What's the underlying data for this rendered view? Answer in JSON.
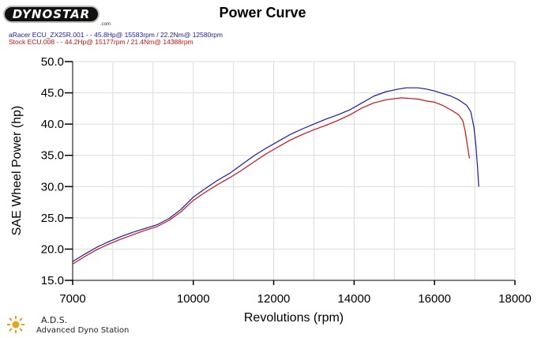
{
  "header": {
    "logo_text": "DYNOSTAR",
    "logo_sub": ".com",
    "title": "Power Curve"
  },
  "legend": [
    {
      "text": "aRacer ECU_ZX25R.001 - - 45.8Hp@ 15583rpm / 22.2Nm@ 12580rpm",
      "color": "#1a1aaa"
    },
    {
      "text": "Stock ECU.008 - - 44.2Hp@ 15177rpm / 21.4Nm@ 14388rpm",
      "color": "#cc1111"
    }
  ],
  "footer": {
    "name": "A.D.S.",
    "subtitle": "Advanced Dyno Station"
  },
  "chart_data": {
    "type": "line",
    "title": "Power Curve",
    "xlabel": "Revolutions (rpm)",
    "ylabel": "SAE Wheel Power (hp)",
    "xlim": [
      7000,
      18000
    ],
    "ylim": [
      15,
      50
    ],
    "xticks": [
      7000,
      10000,
      12000,
      14000,
      16000,
      18000
    ],
    "xtick_labels": [
      "7000",
      "10000",
      "12000",
      "14000",
      "16000",
      "18000"
    ],
    "yticks": [
      15,
      20,
      25,
      30,
      35,
      40,
      45,
      50
    ],
    "ytick_labels": [
      "15.0",
      "20.0",
      "25.0",
      "30.0",
      "35.0",
      "40.0",
      "45.0",
      "50.0"
    ],
    "grid": true,
    "series": [
      {
        "name": "aRacer ECU_ZX25R.001",
        "color": "#1a1aaa",
        "x": [
          7000,
          7300,
          7600,
          7900,
          8200,
          8500,
          8800,
          9100,
          9400,
          9700,
          10000,
          10300,
          10600,
          10900,
          11200,
          11500,
          11800,
          12100,
          12400,
          12700,
          13000,
          13300,
          13600,
          13900,
          14200,
          14500,
          14800,
          15100,
          15300,
          15583,
          15800,
          16000,
          16200,
          16400,
          16600,
          16800,
          16900,
          16980,
          17030,
          17070,
          17100
        ],
        "y": [
          18.0,
          19.2,
          20.3,
          21.2,
          22.0,
          22.7,
          23.3,
          23.9,
          24.9,
          26.4,
          28.3,
          29.7,
          31.0,
          32.1,
          33.5,
          34.9,
          36.1,
          37.2,
          38.3,
          39.2,
          40.0,
          40.8,
          41.5,
          42.3,
          43.4,
          44.5,
          45.2,
          45.6,
          45.8,
          45.8,
          45.6,
          45.3,
          44.9,
          44.5,
          43.9,
          43.0,
          42.0,
          39.5,
          36.5,
          33.0,
          30.0
        ]
      },
      {
        "name": "Stock ECU.008",
        "color": "#cc1111",
        "x": [
          7000,
          7300,
          7600,
          7900,
          8200,
          8500,
          8800,
          9100,
          9400,
          9700,
          10000,
          10300,
          10600,
          10900,
          11200,
          11500,
          11800,
          12100,
          12400,
          12700,
          13000,
          13300,
          13600,
          13900,
          14200,
          14500,
          14800,
          15177,
          15400,
          15600,
          15800,
          16000,
          16200,
          16400,
          16600,
          16700,
          16760,
          16820,
          16870
        ],
        "y": [
          17.6,
          18.8,
          19.9,
          20.8,
          21.6,
          22.3,
          23.0,
          23.6,
          24.6,
          26.0,
          27.8,
          29.1,
          30.3,
          31.4,
          32.6,
          33.9,
          35.2,
          36.3,
          37.4,
          38.3,
          39.1,
          39.8,
          40.6,
          41.5,
          42.6,
          43.4,
          43.9,
          44.2,
          44.1,
          44.0,
          43.7,
          43.5,
          43.0,
          42.3,
          41.5,
          40.6,
          39.0,
          36.5,
          34.5
        ]
      }
    ]
  }
}
